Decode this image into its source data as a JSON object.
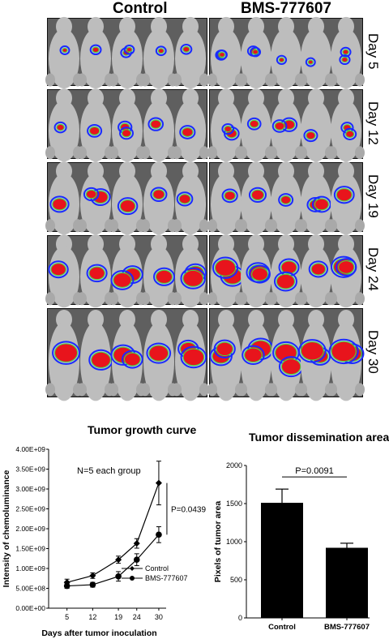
{
  "headers": {
    "left": "Control",
    "right": "BMS-777607"
  },
  "days": [
    "Day 5",
    "Day 12",
    "Day 19",
    "Day 24",
    "Day 30"
  ],
  "colors": {
    "mouse": "#bdbdbd",
    "bg": "#5f5f5f",
    "signal_red": "#e8141c",
    "signal_green": "#39e04a",
    "signal_blue": "#1a2cff",
    "bar": "#000000"
  },
  "growth": {
    "title": "Tumor growth curve",
    "annotation": "N=5 each group",
    "pvalue": "P=0.0439",
    "xlabel": "Days after tumor inoculation",
    "ylabel": "Intensity of chemoluminance",
    "yticks": [
      "0.00E+00",
      "5.00E+08",
      "1.00E+09",
      "1.50E+09",
      "2.00E+09",
      "2.50E+09",
      "3.00E+09",
      "3.50E+09",
      "4.00E+09"
    ],
    "xticks": [
      "5",
      "12",
      "19",
      "24",
      "30"
    ]
  },
  "area": {
    "title": "Tumor dissemination area",
    "pvalue": "P=0.0091",
    "ylabel": "Pixels of tumor area",
    "yticks": [
      "0",
      "500",
      "1000",
      "1500",
      "2000"
    ]
  },
  "chart_data": [
    {
      "type": "line",
      "title": "Tumor growth curve",
      "xlabel": "Days after tumor inoculation",
      "ylabel": "Intensity of chemoluminance",
      "x": [
        5,
        12,
        19,
        24,
        30
      ],
      "ylim": [
        0,
        4000000000
      ],
      "legend": "bottom-right",
      "series": [
        {
          "name": "Control",
          "marker": "diamond",
          "values": [
            650000000,
            820000000,
            1220000000,
            1630000000,
            3150000000
          ],
          "errors": [
            80000000,
            70000000,
            90000000,
            120000000,
            550000000
          ]
        },
        {
          "name": "BMS-777607",
          "marker": "circle",
          "values": [
            560000000,
            590000000,
            800000000,
            1220000000,
            1850000000
          ],
          "errors": [
            60000000,
            60000000,
            120000000,
            150000000,
            200000000
          ]
        }
      ]
    },
    {
      "type": "bar",
      "title": "Tumor dissemination area",
      "ylabel": "Pixels of tumor area",
      "categories": [
        "Control",
        "BMS-777607"
      ],
      "values": [
        1510,
        920
      ],
      "errors": [
        180,
        60
      ],
      "ylim": [
        0,
        2000
      ]
    }
  ]
}
